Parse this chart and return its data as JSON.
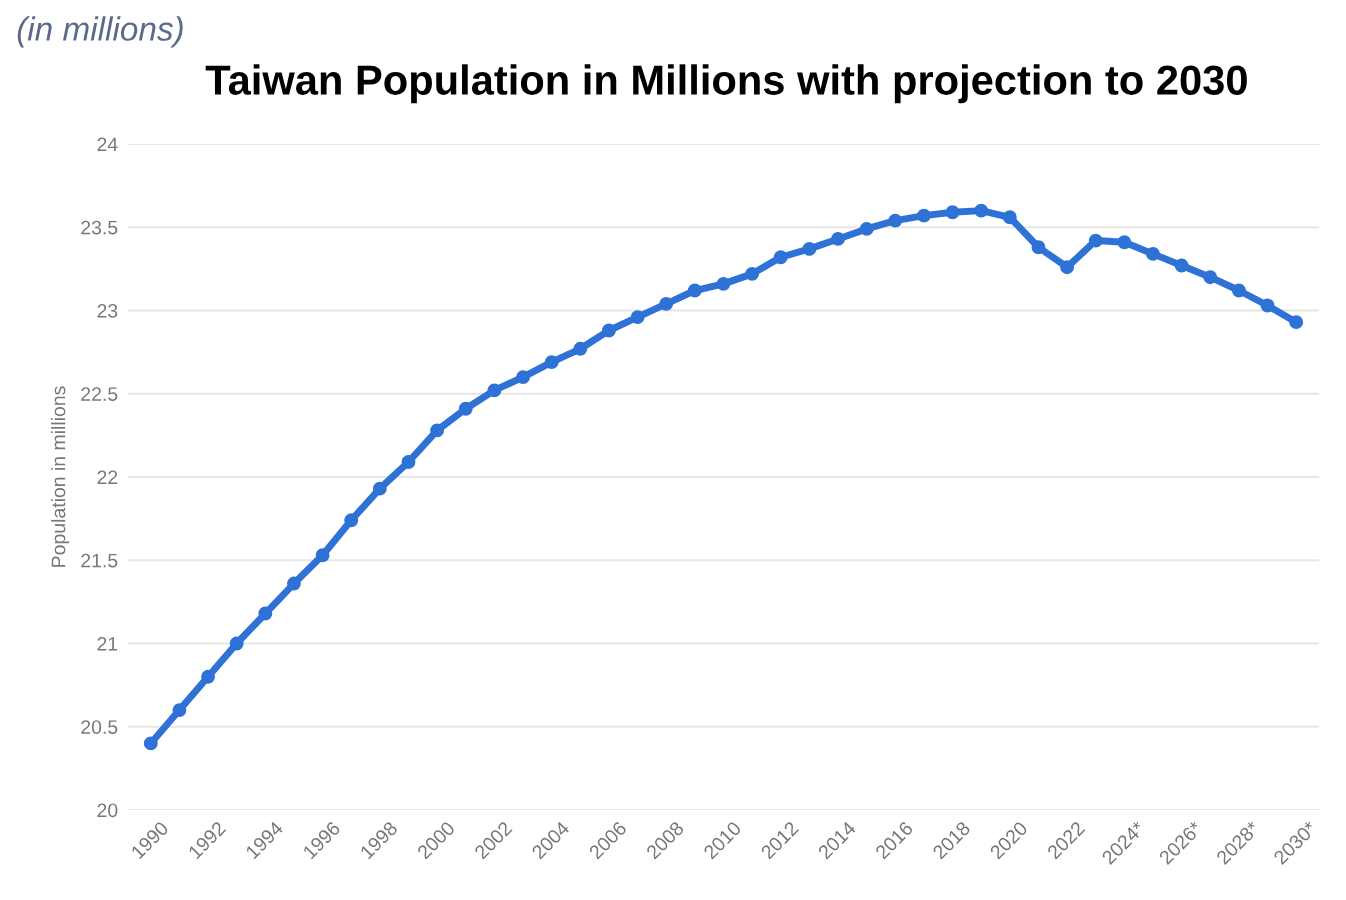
{
  "chart_data": {
    "type": "line",
    "title": "Taiwan Population in Millions with projection to 2030",
    "ylabel": "Population in millions",
    "annotations": [
      "(in millions)"
    ],
    "categories": [
      "1990",
      null,
      "1992",
      null,
      "1994",
      null,
      "1996",
      null,
      "1998",
      null,
      "2000",
      null,
      "2002",
      null,
      "2004",
      null,
      "2006",
      null,
      "2008",
      null,
      "2010",
      null,
      "2012",
      null,
      "2014",
      null,
      "2016",
      null,
      "2018",
      null,
      "2020",
      null,
      "2022",
      null,
      "2024*",
      null,
      "2026*",
      null,
      "2028*",
      null,
      "2030*"
    ],
    "series": [
      {
        "color": "#2f72d6",
        "values": [
          20.4,
          20.6,
          20.8,
          21.0,
          21.18,
          21.36,
          21.53,
          21.74,
          21.93,
          22.09,
          22.28,
          22.41,
          22.52,
          22.6,
          22.69,
          22.77,
          22.88,
          22.96,
          23.04,
          23.12,
          23.16,
          23.22,
          23.32,
          23.37,
          23.43,
          23.49,
          23.54,
          23.57,
          23.59,
          23.6,
          23.56,
          23.38,
          23.26,
          23.42,
          23.41,
          23.34,
          23.27,
          23.2,
          23.12,
          23.03,
          22.93
        ]
      }
    ],
    "ylim": [
      20,
      24
    ],
    "yticks": [
      20,
      20.5,
      21,
      21.5,
      22,
      22.5,
      23,
      23.5,
      24
    ],
    "grid": "y",
    "marker": "circle",
    "line_style": "solid"
  }
}
